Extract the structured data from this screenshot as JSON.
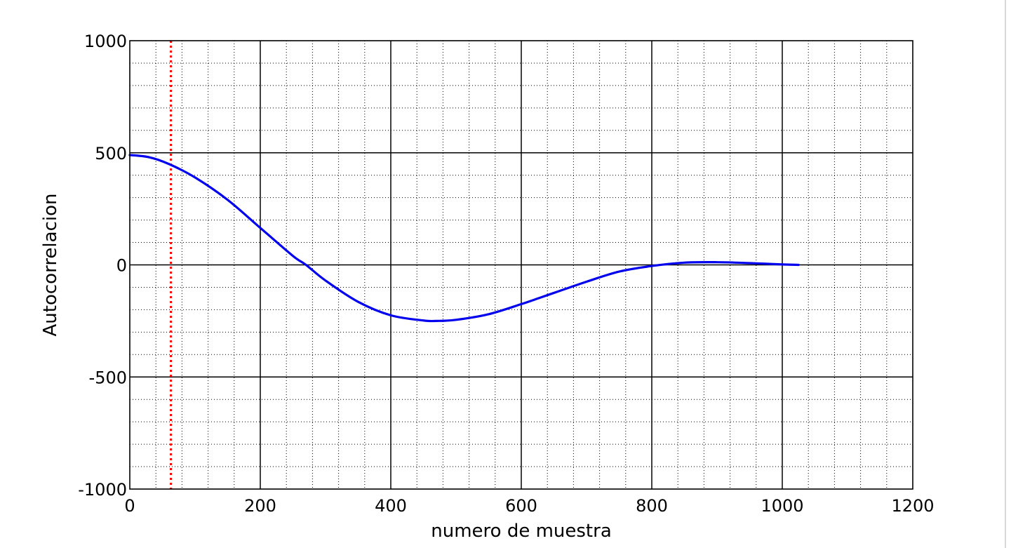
{
  "chart_data": {
    "type": "line",
    "title": "",
    "xlabel": "numero de muestra",
    "ylabel": "Autocorrelacion",
    "xlim": [
      0,
      1200
    ],
    "ylim": [
      -1000,
      1000
    ],
    "x_ticks": [
      0,
      200,
      400,
      600,
      800,
      1000,
      1200
    ],
    "y_ticks": [
      -1000,
      -500,
      0,
      500,
      1000
    ],
    "x_tick_labels": [
      "0",
      "200",
      "400",
      "600",
      "800",
      "1000",
      "1200"
    ],
    "y_tick_labels": [
      "-1000",
      "-500",
      "0",
      "500",
      "1000"
    ],
    "x_minor_step": 40,
    "y_minor_step": 100,
    "grid": true,
    "series": [
      {
        "color": "#0000ee",
        "x": [
          0,
          30,
          60,
          100,
          150,
          200,
          250,
          270,
          300,
          350,
          400,
          450,
          470,
          500,
          550,
          600,
          650,
          700,
          750,
          800,
          850,
          900,
          950,
          1000,
          1025
        ],
        "y": [
          490,
          480,
          450,
          390,
          290,
          165,
          40,
          0,
          -70,
          -165,
          -225,
          -248,
          -250,
          -245,
          -220,
          -175,
          -125,
          -75,
          -30,
          -5,
          10,
          12,
          8,
          2,
          0
        ]
      }
    ],
    "vertical_marker": {
      "x": 63,
      "color": "#ff0000",
      "style": "dotted"
    }
  }
}
